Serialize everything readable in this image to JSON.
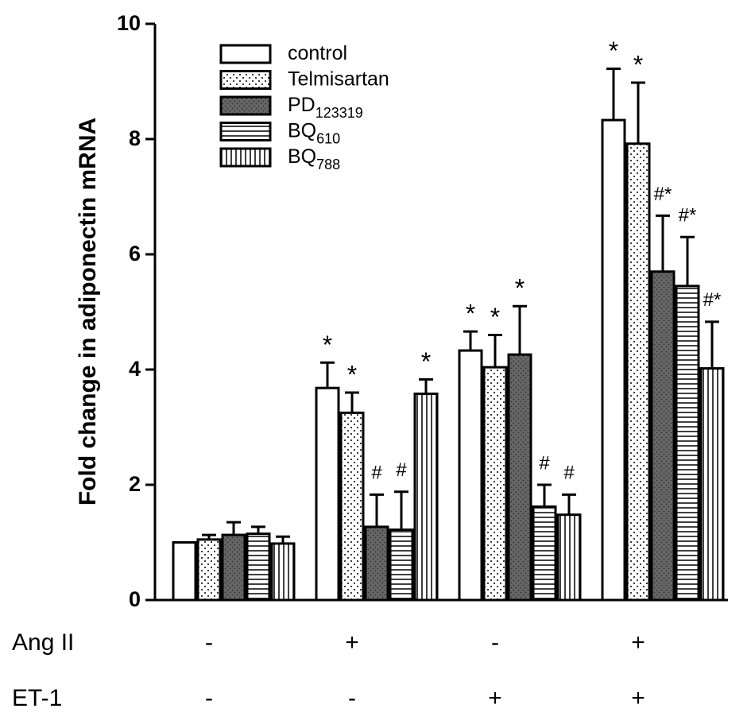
{
  "chart_data": {
    "type": "bar",
    "y_label": "Fold change in adiponectin mRNA",
    "ylim": [
      0,
      10
    ],
    "yticks": [
      0,
      2,
      4,
      6,
      8,
      10
    ],
    "conditions": [
      {
        "label": "Ang II",
        "values": [
          "-",
          "+",
          "-",
          "+"
        ]
      },
      {
        "label": "ET-1",
        "values": [
          "-",
          "-",
          "+",
          "+"
        ]
      }
    ],
    "series": [
      {
        "name": "control",
        "subscript": null,
        "color": "#ffffff",
        "pattern": "none",
        "values": [
          1.0,
          3.68,
          4.33,
          8.33
        ],
        "errors": [
          0,
          0.44,
          0.33,
          0.89
        ],
        "annotations": [
          null,
          "*",
          "*",
          "*"
        ]
      },
      {
        "name": "Telmisartan",
        "subscript": null,
        "color": "#ffffff",
        "pattern": "dots",
        "values": [
          1.05,
          3.25,
          4.04,
          7.92
        ],
        "errors": [
          0.08,
          0.35,
          0.56,
          1.06
        ],
        "annotations": [
          null,
          "*",
          "*",
          "*"
        ]
      },
      {
        "name": "PD",
        "subscript": "123319",
        "color": "#666666",
        "pattern": "dark-dots",
        "values": [
          1.13,
          1.27,
          4.26,
          5.7
        ],
        "errors": [
          0.22,
          0.56,
          0.84,
          0.97
        ],
        "annotations": [
          null,
          "#",
          "*",
          "#*"
        ]
      },
      {
        "name": "BQ",
        "subscript": "610",
        "color": "#ffffff",
        "pattern": "hlines",
        "values": [
          1.15,
          1.22,
          1.62,
          5.45
        ],
        "errors": [
          0.12,
          0.66,
          0.38,
          0.85
        ],
        "annotations": [
          null,
          "#",
          "#",
          "#*"
        ]
      },
      {
        "name": "BQ",
        "subscript": "788",
        "color": "#ffffff",
        "pattern": "vlines",
        "values": [
          0.98,
          3.58,
          1.48,
          4.02
        ],
        "errors": [
          0.12,
          0.25,
          0.35,
          0.81
        ],
        "annotations": [
          null,
          "*",
          "#",
          "#*"
        ]
      }
    ]
  }
}
